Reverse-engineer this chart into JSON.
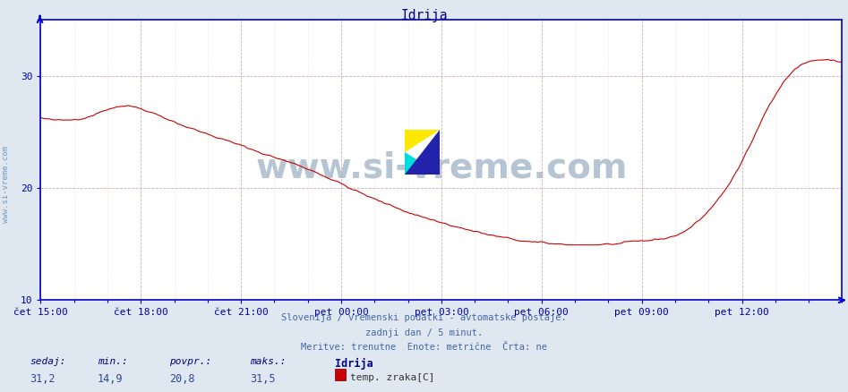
{
  "title": "Idrija",
  "title_color": "#000080",
  "bg_color": "#dfe8f0",
  "plot_bg_color": "#ffffff",
  "line_color": "#cc0000",
  "axis_color": "#0000cc",
  "grid_major_color": "#cc9999",
  "grid_minor_color": "#ddbbbb",
  "tick_label_color": "#0000aa",
  "ymin": 10,
  "ymax": 35,
  "yticks": [
    10,
    20,
    30
  ],
  "x_tick_labels": [
    "čet 15:00",
    "čet 18:00",
    "čet 21:00",
    "pet 00:00",
    "pet 03:00",
    "pet 06:00",
    "pet 09:00",
    "pet 12:00"
  ],
  "subtitle1": "Slovenija / vremenski podatki - avtomatske postaje.",
  "subtitle2": "zadnji dan / 5 minut.",
  "subtitle3": "Meritve: trenutne  Enote: metrične  Črta: ne",
  "subtitle_color": "#4466aa",
  "legend_station": "Idrija",
  "legend_label": "temp. zraka[C]",
  "legend_color": "#cc0000",
  "stats_labels": [
    "sedaj:",
    "min.:",
    "povpr.:",
    "maks.:"
  ],
  "stats_values": [
    "31,2",
    "14,9",
    "20,8",
    "31,5"
  ],
  "stats_label_color": "#000088",
  "stats_value_color": "#334499",
  "watermark_text": "www.si-vreme.com",
  "watermark_color": "#aabbcc",
  "sidebar_text": "www.si-vreme.com",
  "sidebar_color": "#7799bb",
  "logo_yellow": "#FFE800",
  "logo_cyan": "#00DDDD",
  "logo_blue": "#2222AA"
}
